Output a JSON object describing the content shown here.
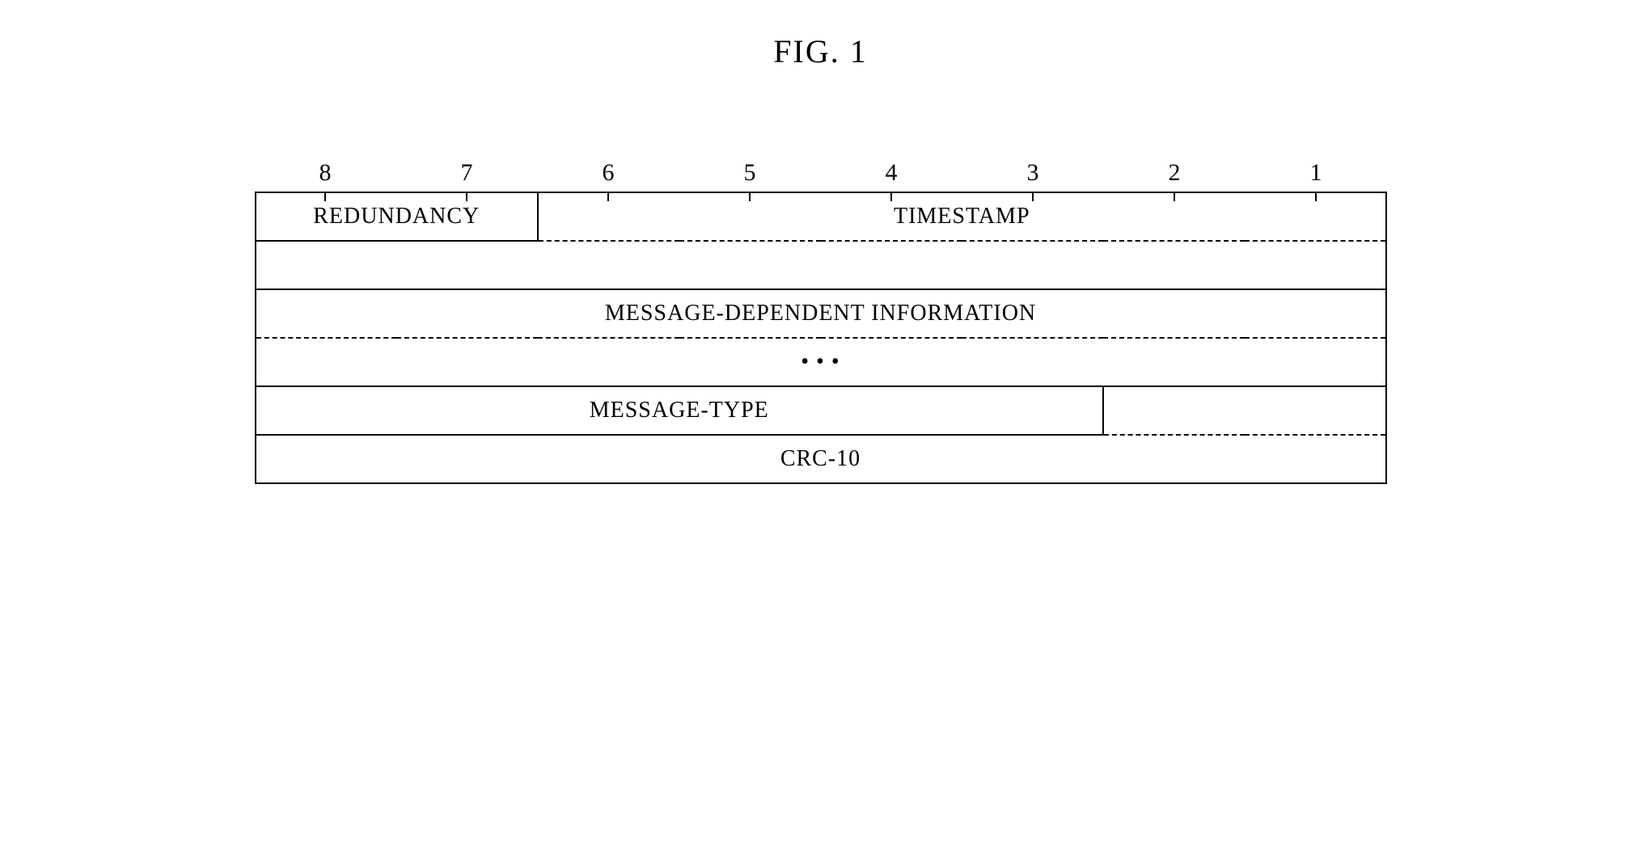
{
  "figure": {
    "title": "FIG. 1"
  },
  "bitHeader": {
    "labels": [
      "8",
      "7",
      "6",
      "5",
      "4",
      "3",
      "2",
      "1"
    ]
  },
  "rows": {
    "redundancy": "REDUNDANCY",
    "timestamp": "TIMESTAMP",
    "msgDepInfo": "MESSAGE-DEPENDENT INFORMATION",
    "ellipsis": "•  •  •",
    "messageType": "MESSAGE-TYPE",
    "crc": "CRC-10"
  },
  "colors": {
    "background": "#ffffff",
    "line": "#000000"
  }
}
